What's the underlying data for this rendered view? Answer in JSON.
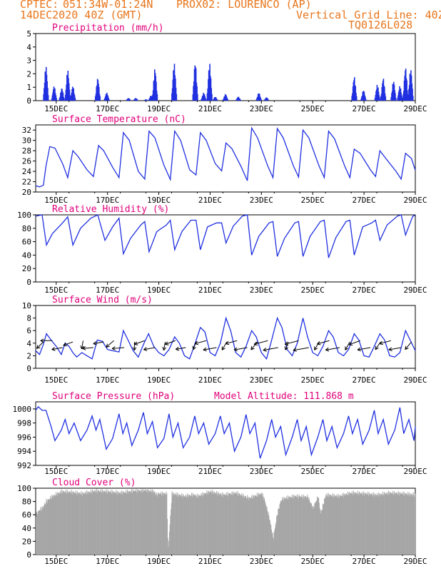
{
  "header": {
    "left_line1": "CPTEC:",
    "coords": "051:34W-01:24N",
    "location": "PROX02: LOURENCO (AP)",
    "left_line2": "14DEC2020 40Z (GMT)",
    "grid_note": "Vertical Grid Line: 40Z",
    "model": "TQ0126L028"
  },
  "colors": {
    "header": "#e8761c",
    "title": "#e0007a",
    "series": "#2030e0",
    "cloud": "#a6a6a6",
    "arrow": "#000000"
  },
  "xaxis": {
    "start": 14.2,
    "end": 29.0,
    "tick_values": [
      15,
      17,
      19,
      21,
      23,
      25,
      27,
      29
    ],
    "tick_labels": [
      "15DEC",
      "17DEC",
      "19DEC",
      "21DEC",
      "23DEC",
      "25DEC",
      "27DEC",
      "29DEC"
    ]
  },
  "chart_data": [
    {
      "type": "bar",
      "title": "Precipitation (mm/h)",
      "ylim": [
        0,
        5
      ],
      "yticks": [
        0,
        1,
        2,
        3,
        4,
        5
      ],
      "bursts": [
        [
          14.6,
          2.6
        ],
        [
          14.92,
          1.1
        ],
        [
          15.22,
          0.95
        ],
        [
          15.45,
          2.3
        ],
        [
          15.65,
          1.1
        ],
        [
          16.62,
          1.7
        ],
        [
          16.97,
          0.6
        ],
        [
          17.82,
          0.2
        ],
        [
          18.1,
          0.2
        ],
        [
          18.5,
          0.1
        ],
        [
          18.7,
          0.4
        ],
        [
          18.85,
          2.4
        ],
        [
          19.6,
          2.8
        ],
        [
          20.42,
          2.9
        ],
        [
          20.75,
          0.6
        ],
        [
          20.98,
          2.8
        ],
        [
          21.2,
          0.3
        ],
        [
          21.6,
          0.5
        ],
        [
          22.1,
          0.3
        ],
        [
          22.9,
          0.6
        ],
        [
          23.2,
          0.25
        ],
        [
          26.62,
          1.8
        ],
        [
          26.98,
          0.8
        ],
        [
          27.52,
          1.2
        ],
        [
          27.75,
          1.7
        ],
        [
          28.15,
          1.5
        ],
        [
          28.4,
          1.1
        ],
        [
          28.62,
          2.5
        ],
        [
          28.82,
          2.4
        ]
      ]
    },
    {
      "type": "line",
      "title": "Surface Temperature (nC)",
      "ylim": [
        20,
        33
      ],
      "yticks": [
        20,
        22,
        24,
        26,
        28,
        30,
        32
      ],
      "x": [
        14.2,
        14.35,
        14.5,
        14.6,
        14.75,
        14.95,
        15.25,
        15.45,
        15.65,
        15.85,
        16.2,
        16.45,
        16.65,
        16.85,
        17.2,
        17.45,
        17.62,
        17.85,
        18.2,
        18.45,
        18.62,
        18.85,
        19.2,
        19.45,
        19.62,
        19.85,
        20.2,
        20.45,
        20.62,
        20.85,
        21.2,
        21.45,
        21.62,
        21.85,
        22.2,
        22.45,
        22.62,
        22.85,
        23.25,
        23.45,
        23.62,
        23.85,
        24.25,
        24.45,
        24.62,
        24.85,
        25.25,
        25.45,
        25.62,
        25.85,
        26.25,
        26.45,
        26.62,
        26.85,
        27.25,
        27.45,
        27.62,
        27.85,
        28.25,
        28.45,
        28.62,
        28.85,
        29.0
      ],
      "values": [
        21.2,
        21.0,
        21.3,
        25.0,
        28.8,
        28.5,
        25.5,
        22.8,
        28.0,
        26.9,
        24.3,
        23.0,
        29.0,
        28.0,
        24.8,
        22.8,
        31.5,
        30.0,
        24.0,
        22.5,
        31.8,
        30.5,
        25.2,
        22.4,
        31.8,
        30.0,
        24.3,
        23.3,
        31.5,
        30.0,
        25.5,
        24.1,
        29.5,
        28.4,
        25.0,
        22.2,
        32.4,
        30.5,
        25.0,
        22.8,
        32.3,
        30.5,
        25.0,
        22.9,
        32.0,
        30.5,
        25.0,
        22.8,
        31.8,
        30.3,
        25.0,
        22.8,
        28.3,
        27.5,
        24.3,
        23.0,
        28.0,
        26.5,
        24.0,
        22.5,
        27.5,
        26.5,
        24.2
      ]
    },
    {
      "type": "line",
      "title": "Relative Humidity (%)",
      "ylim": [
        0,
        100
      ],
      "yticks": [
        0,
        20,
        40,
        60,
        80,
        100
      ],
      "x": [
        14.2,
        14.45,
        14.62,
        14.85,
        15.25,
        15.45,
        15.65,
        15.95,
        16.35,
        16.62,
        16.9,
        17.2,
        17.45,
        17.62,
        17.9,
        18.3,
        18.45,
        18.62,
        18.92,
        19.3,
        19.45,
        19.62,
        19.9,
        20.25,
        20.45,
        20.62,
        20.9,
        21.25,
        21.45,
        21.62,
        21.9,
        22.25,
        22.45,
        22.62,
        22.9,
        23.3,
        23.45,
        23.62,
        23.9,
        24.3,
        24.45,
        24.62,
        24.9,
        25.3,
        25.45,
        25.62,
        25.9,
        26.3,
        26.45,
        26.62,
        26.95,
        27.3,
        27.45,
        27.62,
        27.9,
        28.3,
        28.45,
        28.62,
        28.9,
        29.0
      ],
      "values": [
        98,
        100,
        55,
        72,
        88,
        97,
        55,
        80,
        95,
        100,
        62,
        82,
        95,
        42,
        65,
        85,
        90,
        45,
        75,
        85,
        92,
        48,
        75,
        92,
        92,
        48,
        82,
        88,
        88,
        58,
        83,
        98,
        100,
        40,
        68,
        88,
        90,
        38,
        65,
        88,
        90,
        38,
        68,
        90,
        92,
        36,
        66,
        90,
        92,
        40,
        82,
        88,
        92,
        62,
        85,
        98,
        100,
        70,
        98,
        99
      ]
    },
    {
      "type": "line",
      "title": "Surface Wind (m/s)",
      "ylim": [
        0,
        10
      ],
      "yticks": [
        0,
        2,
        4,
        6,
        8,
        10
      ],
      "x": [
        14.2,
        14.35,
        14.5,
        14.62,
        14.8,
        15.0,
        15.2,
        15.35,
        15.5,
        15.65,
        15.8,
        16.0,
        16.2,
        16.4,
        16.6,
        16.8,
        17.0,
        17.2,
        17.45,
        17.62,
        17.8,
        18.0,
        18.2,
        18.4,
        18.6,
        18.8,
        19.0,
        19.2,
        19.4,
        19.62,
        19.8,
        20.0,
        20.2,
        20.4,
        20.62,
        20.8,
        21.0,
        21.2,
        21.4,
        21.62,
        21.8,
        22.0,
        22.2,
        22.4,
        22.62,
        22.8,
        23.0,
        23.2,
        23.4,
        23.62,
        23.8,
        24.0,
        24.2,
        24.4,
        24.62,
        24.8,
        25.0,
        25.2,
        25.4,
        25.62,
        25.8,
        26.0,
        26.2,
        26.4,
        26.62,
        26.8,
        27.0,
        27.2,
        27.4,
        27.62,
        27.8,
        28.0,
        28.2,
        28.4,
        28.62,
        28.8,
        29.0
      ],
      "values": [
        2.8,
        2.2,
        3.8,
        5.5,
        4.5,
        3.5,
        2.2,
        4.0,
        3.5,
        2.5,
        1.8,
        2.5,
        2.0,
        1.5,
        4.5,
        4.3,
        3.0,
        2.8,
        2.6,
        6.0,
        4.5,
        2.8,
        1.8,
        3.8,
        5.5,
        3.5,
        2.5,
        2.0,
        3.0,
        5.0,
        4.0,
        2.0,
        1.5,
        3.8,
        6.5,
        5.8,
        2.5,
        2.0,
        4.0,
        8.0,
        6.0,
        2.5,
        1.8,
        3.5,
        6.0,
        5.0,
        2.5,
        1.5,
        4.5,
        8.0,
        6.5,
        3.0,
        2.0,
        4.0,
        8.0,
        5.0,
        2.5,
        2.0,
        3.5,
        6.0,
        5.0,
        2.5,
        2.0,
        3.0,
        5.5,
        4.5,
        2.0,
        1.8,
        3.5,
        5.5,
        4.5,
        2.0,
        1.8,
        2.5,
        6.0,
        4.5,
        2.8
      ]
    },
    {
      "type": "line",
      "title": "Surface Pressure (hPa)",
      "annotation": "Model Altitude: 111.868 m",
      "ylim": [
        992,
        1001
      ],
      "yticks": [
        992,
        994,
        996,
        998,
        1000
      ],
      "x": [
        14.2,
        14.3,
        14.45,
        14.6,
        14.8,
        14.95,
        15.2,
        15.35,
        15.5,
        15.7,
        15.95,
        16.2,
        16.4,
        16.55,
        16.7,
        16.95,
        17.2,
        17.45,
        17.6,
        17.75,
        17.95,
        18.2,
        18.4,
        18.55,
        18.75,
        18.95,
        19.2,
        19.4,
        19.55,
        19.75,
        19.95,
        20.2,
        20.4,
        20.55,
        20.75,
        20.95,
        21.2,
        21.4,
        21.55,
        21.75,
        21.95,
        22.2,
        22.4,
        22.55,
        22.75,
        22.95,
        23.2,
        23.4,
        23.55,
        23.75,
        23.95,
        24.2,
        24.4,
        24.55,
        24.75,
        24.95,
        25.2,
        25.4,
        25.55,
        25.75,
        25.95,
        26.2,
        26.4,
        26.55,
        26.75,
        26.95,
        27.2,
        27.4,
        27.55,
        27.75,
        27.95,
        28.2,
        28.4,
        28.55,
        28.75,
        28.95,
        29.0
      ],
      "values": [
        999.8,
        1000.3,
        999.8,
        999.8,
        997.5,
        995.5,
        997.0,
        998.5,
        996.5,
        998.0,
        995.5,
        997.0,
        999.0,
        997.0,
        998.5,
        994.3,
        995.8,
        999.3,
        996.5,
        998.0,
        994.8,
        997.0,
        999.5,
        996.5,
        998.2,
        994.5,
        995.8,
        999.3,
        996.0,
        998.0,
        994.5,
        996.0,
        999.0,
        996.5,
        998.0,
        995.0,
        996.5,
        999.0,
        996.5,
        998.0,
        994.0,
        996.0,
        999.2,
        996.5,
        998.0,
        993.0,
        995.5,
        998.5,
        996.0,
        997.5,
        993.5,
        996.0,
        998.5,
        995.5,
        997.5,
        993.5,
        996.0,
        998.5,
        995.5,
        997.5,
        994.5,
        996.5,
        999.0,
        996.5,
        998.5,
        995.0,
        997.0,
        999.8,
        996.5,
        998.5,
        995.0,
        997.0,
        1000.2,
        996.5,
        998.5,
        995.5,
        997.5
      ]
    },
    {
      "type": "area",
      "title": "Cloud Cover (%)",
      "ylim": [
        0,
        100
      ],
      "yticks": [
        0,
        20,
        40,
        60,
        80,
        100
      ],
      "x": [
        14.2,
        14.35,
        14.45,
        14.6,
        14.85,
        15.2,
        15.6,
        16.0,
        16.5,
        17.0,
        17.5,
        18.0,
        18.5,
        18.8,
        18.9,
        19.0,
        19.3,
        19.35,
        19.5,
        20.0,
        20.3,
        20.35,
        20.5,
        21.0,
        21.5,
        22.0,
        22.5,
        23.0,
        23.1,
        23.3,
        23.45,
        23.6,
        23.75,
        23.9,
        24.3,
        24.8,
        25.0,
        25.2,
        25.3,
        25.5,
        26.0,
        26.5,
        27.0,
        27.5,
        28.0,
        28.5,
        29.0
      ],
      "values": [
        60,
        68,
        70,
        80,
        88,
        95,
        94,
        92,
        96,
        95,
        93,
        96,
        97,
        95,
        90,
        92,
        92,
        5,
        92,
        88,
        90,
        90,
        88,
        95,
        90,
        93,
        85,
        92,
        84,
        55,
        24,
        60,
        82,
        85,
        88,
        87,
        70,
        88,
        62,
        90,
        88,
        93,
        92,
        90,
        93,
        92,
        90
      ]
    }
  ],
  "wind_vectors": {
    "x": [
      14.5,
      14.85,
      15.25,
      15.65,
      16.05,
      16.45,
      16.85,
      17.25,
      17.65,
      18.05,
      18.45,
      18.85,
      19.25,
      19.65,
      20.05,
      20.45,
      20.85,
      21.25,
      21.65,
      22.05,
      22.45,
      22.85,
      23.25,
      23.65,
      24.05,
      24.45,
      24.85,
      25.25,
      25.65,
      26.05,
      26.45,
      26.85,
      27.25,
      27.65,
      28.05,
      28.45,
      28.85
    ],
    "speed": [
      3.5,
      5.0,
      4.5,
      4.0,
      3.0,
      4.5,
      4.2,
      4.0,
      5.2,
      3.0,
      4.5,
      4.8,
      3.0,
      4.5,
      4.0,
      2.8,
      5.0,
      6.0,
      3.5,
      5.0,
      6.0,
      4.0,
      6.5,
      7.0,
      3.0,
      6.5,
      7.5,
      3.5,
      5.5,
      6.5,
      3.5,
      5.0,
      5.8,
      3.5,
      5.0,
      5.5,
      3.8
    ],
    "dir_deg": [
      225,
      180,
      190,
      200,
      260,
      185,
      190,
      220,
      185,
      270,
      200,
      190,
      260,
      200,
      190,
      250,
      195,
      190,
      240,
      195,
      190,
      230,
      195,
      190,
      250,
      195,
      190,
      240,
      195,
      190,
      240,
      200,
      190,
      235,
      195,
      190,
      230
    ]
  }
}
